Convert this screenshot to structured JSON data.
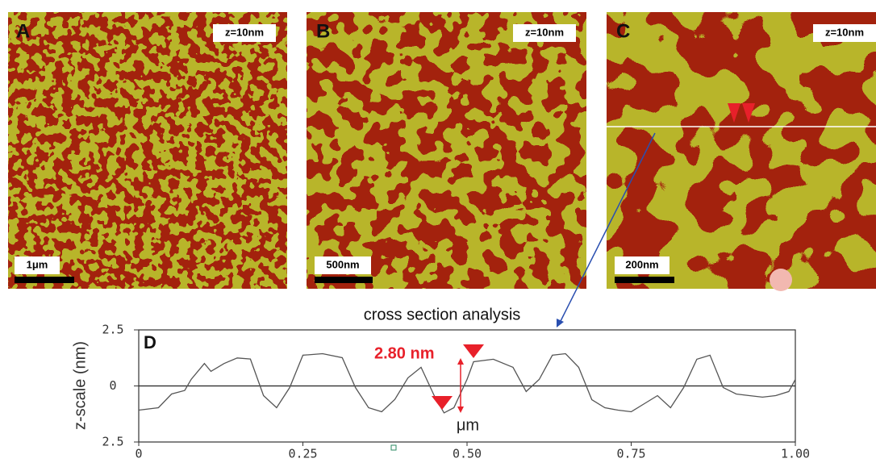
{
  "panels": [
    {
      "letter": "A",
      "z_scale": "z=10nm",
      "scale_bar": "1μm"
    },
    {
      "letter": "B",
      "z_scale": "z=10nm",
      "scale_bar": "500nm"
    },
    {
      "letter": "C",
      "z_scale": "z=10nm",
      "scale_bar": "200nm"
    }
  ],
  "chart_data": {
    "type": "line",
    "title": "cross section analysis",
    "panel_label": "D",
    "x_label": "μm",
    "y_label": "z-scale (nm)",
    "annotation": "2.80 nm",
    "color": "#555555",
    "x": [
      0,
      0.03,
      0.05,
      0.07,
      0.08,
      0.1,
      0.11,
      0.13,
      0.15,
      0.17,
      0.19,
      0.21,
      0.23,
      0.25,
      0.28,
      0.31,
      0.33,
      0.35,
      0.37,
      0.39,
      0.41,
      0.43,
      0.45,
      0.465,
      0.48,
      0.5,
      0.51,
      0.54,
      0.57,
      0.59,
      0.61,
      0.63,
      0.65,
      0.67,
      0.69,
      0.71,
      0.73,
      0.75,
      0.77,
      0.79,
      0.81,
      0.83,
      0.85,
      0.87,
      0.89,
      0.91,
      0.93,
      0.95,
      0.97,
      0.99,
      1.0
    ],
    "values": [
      -1.08,
      -0.97,
      -0.36,
      -0.2,
      0.3,
      1.0,
      0.65,
      1.0,
      1.25,
      1.2,
      -0.43,
      -0.97,
      -0.07,
      1.37,
      1.44,
      1.26,
      -0.07,
      -0.97,
      -1.15,
      -0.6,
      0.36,
      0.83,
      -0.43,
      -1.2,
      -0.97,
      0.29,
      1.08,
      1.19,
      0.83,
      -0.25,
      0.29,
      1.37,
      1.44,
      0.83,
      -0.61,
      -0.97,
      -1.08,
      -1.15,
      -0.79,
      -0.43,
      -0.97,
      -0.07,
      1.19,
      1.37,
      -0.07,
      -0.36,
      -0.43,
      -0.5,
      -0.43,
      -0.25,
      0.29
    ],
    "xlim": [
      0,
      1
    ],
    "xticks": [
      0,
      0.25,
      {
        "value": 0.5,
        "label": "0.50"
      },
      0.75,
      {
        "value": 1,
        "label": "1.00"
      }
    ],
    "ylim": [
      -2.5,
      2.5
    ],
    "yticks": [
      {
        "value": -2.5,
        "label": "2.5"
      },
      0,
      2.5
    ]
  }
}
